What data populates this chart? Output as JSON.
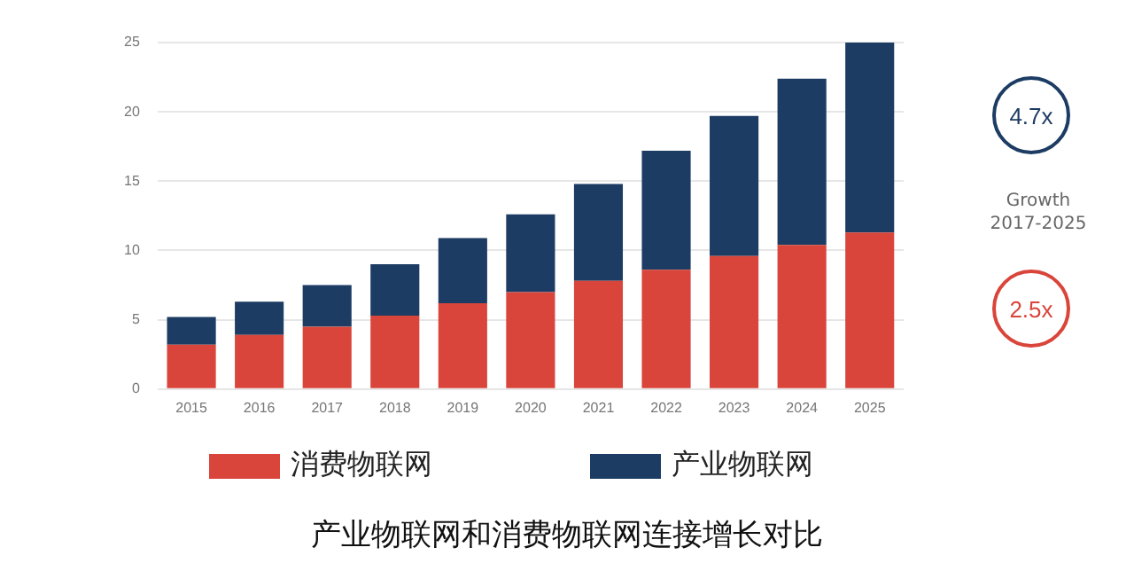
{
  "chart_data": {
    "type": "bar",
    "title": "产业物联网和消费物联网连接增长对比",
    "categories": [
      "2015",
      "2016",
      "2017",
      "2018",
      "2019",
      "2020",
      "2021",
      "2022",
      "2023",
      "2024",
      "2025"
    ],
    "series": [
      {
        "name": "消费物联网",
        "color": "#d9453a",
        "values": [
          3.2,
          3.9,
          4.5,
          5.3,
          6.2,
          7.0,
          7.8,
          8.6,
          9.6,
          10.4,
          11.3
        ]
      },
      {
        "name": "产业物联网",
        "color": "#1d3c63",
        "values": [
          2.0,
          2.4,
          3.0,
          3.7,
          4.7,
          5.6,
          7.0,
          8.6,
          10.1,
          12.0,
          13.7
        ]
      }
    ],
    "stacked": true,
    "ylim": [
      0,
      25
    ],
    "yticks": [
      0,
      5,
      10,
      15,
      20,
      25
    ],
    "grid": "y",
    "legend": "bottom",
    "annotations": [
      "4.7x",
      "Growth\n2017-2025",
      "2.5x"
    ]
  }
}
